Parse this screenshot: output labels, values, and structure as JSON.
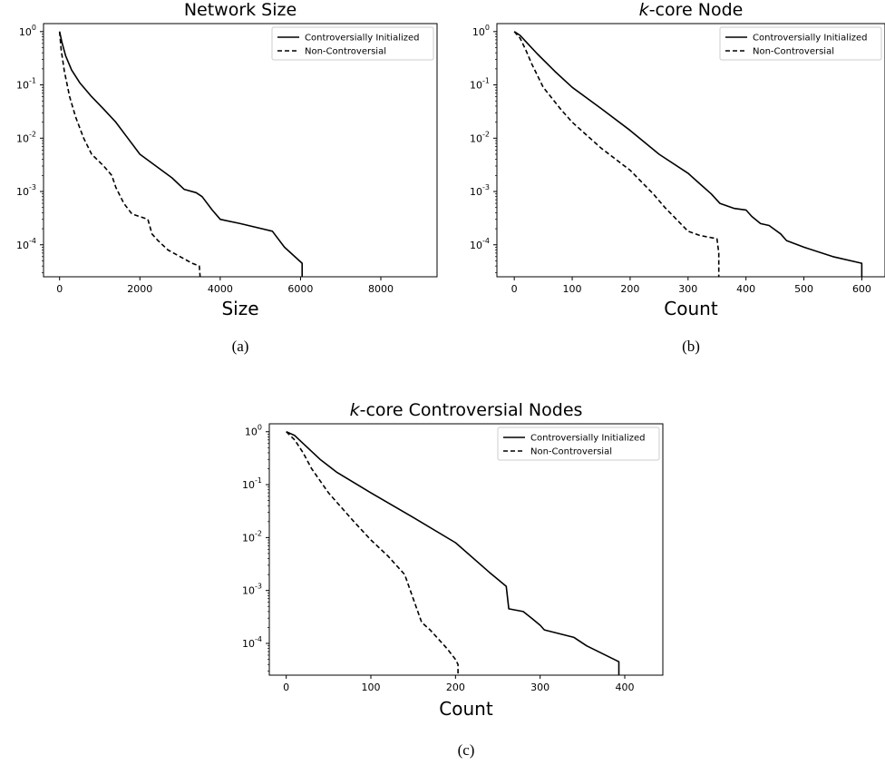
{
  "chart_data": [
    {
      "type": "line",
      "title": "Network Size",
      "title_italic_prefix": "",
      "xlabel": "Size",
      "caption": "(a)",
      "xlim": [
        -400,
        9400
      ],
      "ylim_log10": [
        -4.6,
        0.15
      ],
      "xticks": [
        0,
        2000,
        4000,
        6000,
        8000
      ],
      "yticks_exp": [
        0,
        -1,
        -2,
        -3,
        -4
      ],
      "y_scale": "log",
      "legend_position": "upper right",
      "series": [
        {
          "name": "Controversially Initialized",
          "style": "solid",
          "x": [
            0,
            60,
            150,
            300,
            500,
            800,
            1100,
            1400,
            1700,
            2000,
            2400,
            2800,
            3100,
            3400,
            3550,
            3800,
            4000,
            4500,
            5300,
            5600,
            6040,
            6040
          ],
          "y": [
            1.0,
            0.62,
            0.35,
            0.19,
            0.11,
            0.06,
            0.035,
            0.02,
            0.01,
            0.005,
            0.003,
            0.0018,
            0.0011,
            0.00095,
            0.0008,
            0.00045,
            0.0003,
            0.00025,
            0.00018,
            9e-05,
            4.5e-05,
            2.5e-05
          ]
        },
        {
          "name": "Non-Controversial",
          "style": "dashed",
          "x": [
            0,
            40,
            120,
            250,
            400,
            600,
            800,
            1100,
            1300,
            1400,
            1600,
            1800,
            2200,
            2300,
            2450,
            2700,
            3000,
            3300,
            3480,
            3500
          ],
          "y": [
            1.0,
            0.45,
            0.18,
            0.06,
            0.025,
            0.01,
            0.005,
            0.003,
            0.002,
            0.0012,
            0.0006,
            0.00038,
            0.0003,
            0.00016,
            0.00012,
            8e-05,
            6e-05,
            4.5e-05,
            4e-05,
            2.5e-05
          ]
        }
      ]
    },
    {
      "type": "line",
      "title": "-core Node",
      "title_italic_prefix": "k",
      "xlabel": "Count",
      "caption": "(b)",
      "xlim": [
        -30,
        640
      ],
      "ylim_log10": [
        -4.6,
        0.15
      ],
      "xticks": [
        0,
        100,
        200,
        300,
        400,
        500,
        600
      ],
      "yticks_exp": [
        0,
        -1,
        -2,
        -3,
        -4
      ],
      "y_scale": "log",
      "legend_position": "upper right",
      "series": [
        {
          "name": "Controversially Initialized",
          "style": "solid",
          "x": [
            0,
            10,
            20,
            40,
            70,
            100,
            150,
            200,
            250,
            300,
            320,
            340,
            355,
            380,
            400,
            410,
            425,
            440,
            460,
            470,
            500,
            550,
            600,
            600
          ],
          "y": [
            1.0,
            0.85,
            0.65,
            0.38,
            0.18,
            0.09,
            0.036,
            0.014,
            0.005,
            0.0022,
            0.0014,
            0.0009,
            0.0006,
            0.00048,
            0.00045,
            0.00034,
            0.00025,
            0.00023,
            0.00016,
            0.00012,
            9e-05,
            6e-05,
            4.5e-05,
            2.5e-05
          ]
        },
        {
          "name": "Non-Controversial",
          "style": "dashed",
          "x": [
            0,
            10,
            20,
            30,
            50,
            80,
            100,
            150,
            200,
            220,
            240,
            260,
            280,
            300,
            320,
            350,
            353,
            353
          ],
          "y": [
            1.0,
            0.75,
            0.45,
            0.25,
            0.09,
            0.035,
            0.02,
            0.0065,
            0.0025,
            0.0015,
            0.0009,
            0.0005,
            0.0003,
            0.00018,
            0.00015,
            0.00013,
            7e-05,
            2.5e-05
          ]
        }
      ]
    },
    {
      "type": "line",
      "title": "-core Controversial Nodes",
      "title_italic_prefix": "k",
      "xlabel": "Count",
      "caption": "(c)",
      "xlim": [
        -20,
        445
      ],
      "ylim_log10": [
        -4.6,
        0.15
      ],
      "xticks": [
        0,
        100,
        200,
        300,
        400
      ],
      "yticks_exp": [
        0,
        -1,
        -2,
        -3,
        -4
      ],
      "y_scale": "log",
      "legend_position": "upper right",
      "series": [
        {
          "name": "Controversially Initialized",
          "style": "solid",
          "x": [
            0,
            10,
            20,
            40,
            60,
            100,
            150,
            200,
            240,
            260,
            263,
            280,
            290,
            300,
            305,
            340,
            355,
            393,
            393
          ],
          "y": [
            1.0,
            0.85,
            0.6,
            0.3,
            0.17,
            0.07,
            0.024,
            0.008,
            0.0022,
            0.0012,
            0.00045,
            0.0004,
            0.0003,
            0.00022,
            0.00018,
            0.00013,
            9e-05,
            4.5e-05,
            2.5e-05
          ]
        },
        {
          "name": "Non-Controversial",
          "style": "dashed",
          "x": [
            0,
            10,
            20,
            30,
            50,
            80,
            100,
            120,
            140,
            150,
            160,
            170,
            180,
            190,
            200,
            203,
            203
          ],
          "y": [
            1.0,
            0.7,
            0.4,
            0.2,
            0.07,
            0.02,
            0.009,
            0.0045,
            0.002,
            0.0007,
            0.00025,
            0.00018,
            0.00012,
            8e-05,
            5e-05,
            4e-05,
            2.5e-05
          ]
        }
      ]
    }
  ]
}
